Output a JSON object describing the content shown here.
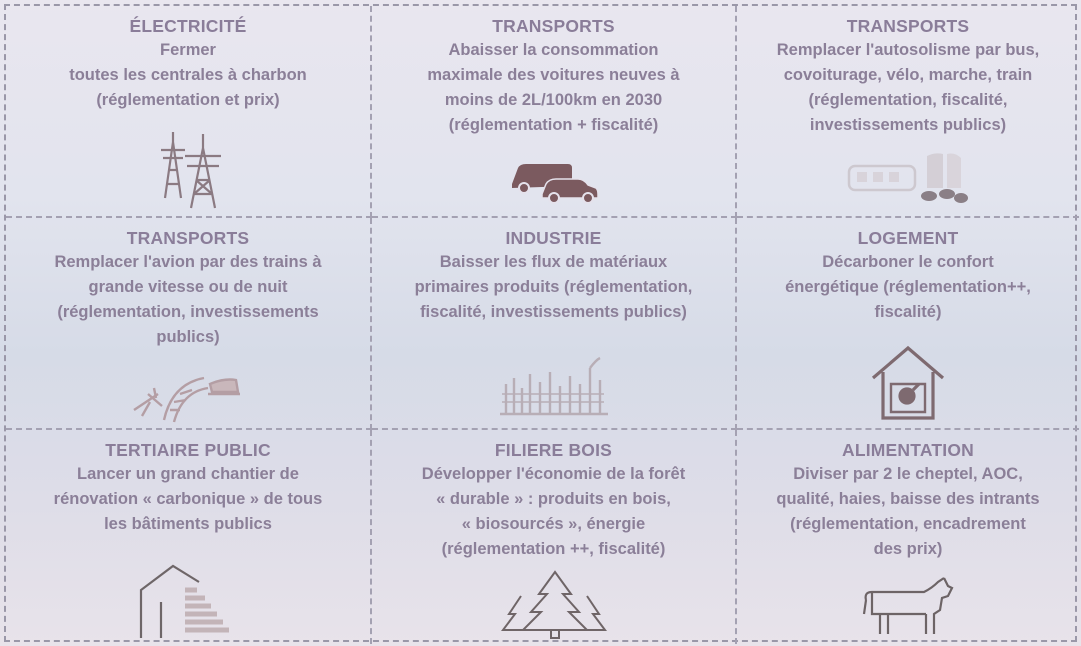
{
  "cells": [
    {
      "title": "ÉLECTRICITÉ",
      "body": "Fermer\ntoutes les centrales à charbon\n(réglementation et prix)",
      "icon": "power-pylon-icon"
    },
    {
      "title": "TRANSPORTS",
      "body": "Abaisser la consommation\nmaximale des voitures neuves à\nmoins de 2L/100km en 2030\n(réglementation + fiscalité)",
      "icon": "van-car-icon"
    },
    {
      "title": "TRANSPORTS",
      "body": "Remplacer l'autosolisme par bus,\ncovoiturage, vélo, marche, train\n(réglementation, fiscalité,\ninvestissements publics)",
      "icon": "bus-cars-icon"
    },
    {
      "title": "TRANSPORTS",
      "body": "Remplacer l'avion par des trains à\ngrande vitesse ou de nuit\n(réglementation, investissements\npublics)",
      "icon": "plane-rail-train-icon"
    },
    {
      "title": "INDUSTRIE",
      "body": "Baisser les flux de matériaux\nprimaires produits (réglementation,\nfiscalité, investissements publics)",
      "icon": "factory-icon"
    },
    {
      "title": "LOGEMENT",
      "body": "Décarboner le confort\nénergétique (réglementation++,\nfiscalité)",
      "icon": "house-energy-icon"
    },
    {
      "title": "TERTIAIRE PUBLIC",
      "body": "Lancer un grand chantier de\nrénovation « carbonique » de tous\nles bâtiments publics",
      "icon": "building-energy-label-icon"
    },
    {
      "title": "FILIERE BOIS",
      "body": "Développer l'économie de la forêt\n« durable » : produits en bois,\n« biosourcés », énergie\n(réglementation ++, fiscalité)",
      "icon": "fir-trees-icon"
    },
    {
      "title": "ALIMENTATION",
      "body": "Diviser par 2 le cheptel, AOC,\nqualité, haies, baisse des intrants\n(réglementation, encadrement\ndes prix)",
      "icon": "cow-icon"
    }
  ],
  "colors": {
    "text": "#8a7d99",
    "icon_dark": "#7a5a5f",
    "border": "#a4a1b2"
  }
}
